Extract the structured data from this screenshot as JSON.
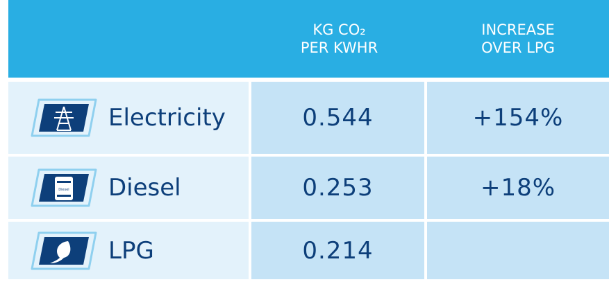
{
  "header": {
    "columns": [
      "KG CO₂",
      "PER KWHR"
    ],
    "columns2": [
      "INCREASE",
      "OVER LPG"
    ]
  },
  "rows": [
    {
      "name": "Electricity",
      "value": "0.544",
      "increase": "+154%"
    },
    {
      "name": "Diesel",
      "value": "0.253",
      "increase": "+18%"
    },
    {
      "name": "LPG",
      "value": "0.214"
    }
  ]
}
